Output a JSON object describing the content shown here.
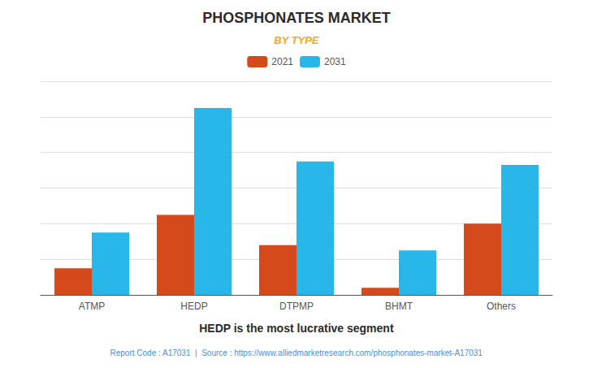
{
  "chart_data": {
    "type": "bar",
    "title": "PHOSPHONATES MARKET",
    "subtitle": "BY TYPE",
    "categories": [
      "ATMP",
      "HEDP",
      "DTPMP",
      "BHMT",
      "Others"
    ],
    "series": [
      {
        "name": "2021",
        "color": "#d44a1a",
        "values": [
          1.5,
          4.5,
          2.8,
          0.4,
          4.0
        ]
      },
      {
        "name": "2031",
        "color": "#29b6e8",
        "values": [
          3.5,
          10.5,
          7.5,
          2.5,
          7.3
        ]
      }
    ],
    "ylim": [
      0,
      12
    ],
    "yticks": [
      0,
      2,
      4,
      6,
      8,
      10,
      12
    ],
    "grid": true,
    "legend": "top",
    "tick_labels": "x",
    "annotations": [
      "HEDP is the most lucrative segment",
      "Report Code : A17031  |  Source : https://www.alliedmarketresearch.com/phosphonates-market-A17031"
    ]
  }
}
